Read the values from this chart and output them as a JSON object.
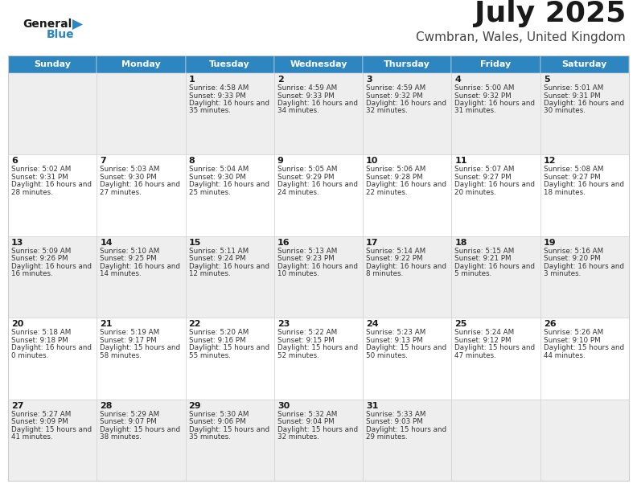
{
  "title": "July 2025",
  "subtitle": "Cwmbran, Wales, United Kingdom",
  "header_bg": "#2E86C1",
  "header_text_color": "#FFFFFF",
  "grid_color": "#CCCCCC",
  "title_color": "#1a1a1a",
  "subtitle_color": "#444444",
  "text_color": "#333333",
  "day_headers": [
    "Sunday",
    "Monday",
    "Tuesday",
    "Wednesday",
    "Thursday",
    "Friday",
    "Saturday"
  ],
  "row_bg": [
    "#EEEEEE",
    "#FFFFFF",
    "#EEEEEE",
    "#FFFFFF",
    "#EEEEEE"
  ],
  "weeks": [
    [
      {
        "day": "",
        "sunrise": "",
        "sunset": "",
        "daylight": ""
      },
      {
        "day": "",
        "sunrise": "",
        "sunset": "",
        "daylight": ""
      },
      {
        "day": "1",
        "sunrise": "4:58 AM",
        "sunset": "9:33 PM",
        "daylight": "16 hours and 35 minutes."
      },
      {
        "day": "2",
        "sunrise": "4:59 AM",
        "sunset": "9:33 PM",
        "daylight": "16 hours and 34 minutes."
      },
      {
        "day": "3",
        "sunrise": "4:59 AM",
        "sunset": "9:32 PM",
        "daylight": "16 hours and 32 minutes."
      },
      {
        "day": "4",
        "sunrise": "5:00 AM",
        "sunset": "9:32 PM",
        "daylight": "16 hours and 31 minutes."
      },
      {
        "day": "5",
        "sunrise": "5:01 AM",
        "sunset": "9:31 PM",
        "daylight": "16 hours and 30 minutes."
      }
    ],
    [
      {
        "day": "6",
        "sunrise": "5:02 AM",
        "sunset": "9:31 PM",
        "daylight": "16 hours and 28 minutes."
      },
      {
        "day": "7",
        "sunrise": "5:03 AM",
        "sunset": "9:30 PM",
        "daylight": "16 hours and 27 minutes."
      },
      {
        "day": "8",
        "sunrise": "5:04 AM",
        "sunset": "9:30 PM",
        "daylight": "16 hours and 25 minutes."
      },
      {
        "day": "9",
        "sunrise": "5:05 AM",
        "sunset": "9:29 PM",
        "daylight": "16 hours and 24 minutes."
      },
      {
        "day": "10",
        "sunrise": "5:06 AM",
        "sunset": "9:28 PM",
        "daylight": "16 hours and 22 minutes."
      },
      {
        "day": "11",
        "sunrise": "5:07 AM",
        "sunset": "9:27 PM",
        "daylight": "16 hours and 20 minutes."
      },
      {
        "day": "12",
        "sunrise": "5:08 AM",
        "sunset": "9:27 PM",
        "daylight": "16 hours and 18 minutes."
      }
    ],
    [
      {
        "day": "13",
        "sunrise": "5:09 AM",
        "sunset": "9:26 PM",
        "daylight": "16 hours and 16 minutes."
      },
      {
        "day": "14",
        "sunrise": "5:10 AM",
        "sunset": "9:25 PM",
        "daylight": "16 hours and 14 minutes."
      },
      {
        "day": "15",
        "sunrise": "5:11 AM",
        "sunset": "9:24 PM",
        "daylight": "16 hours and 12 minutes."
      },
      {
        "day": "16",
        "sunrise": "5:13 AM",
        "sunset": "9:23 PM",
        "daylight": "16 hours and 10 minutes."
      },
      {
        "day": "17",
        "sunrise": "5:14 AM",
        "sunset": "9:22 PM",
        "daylight": "16 hours and 8 minutes."
      },
      {
        "day": "18",
        "sunrise": "5:15 AM",
        "sunset": "9:21 PM",
        "daylight": "16 hours and 5 minutes."
      },
      {
        "day": "19",
        "sunrise": "5:16 AM",
        "sunset": "9:20 PM",
        "daylight": "16 hours and 3 minutes."
      }
    ],
    [
      {
        "day": "20",
        "sunrise": "5:18 AM",
        "sunset": "9:18 PM",
        "daylight": "16 hours and 0 minutes."
      },
      {
        "day": "21",
        "sunrise": "5:19 AM",
        "sunset": "9:17 PM",
        "daylight": "15 hours and 58 minutes."
      },
      {
        "day": "22",
        "sunrise": "5:20 AM",
        "sunset": "9:16 PM",
        "daylight": "15 hours and 55 minutes."
      },
      {
        "day": "23",
        "sunrise": "5:22 AM",
        "sunset": "9:15 PM",
        "daylight": "15 hours and 52 minutes."
      },
      {
        "day": "24",
        "sunrise": "5:23 AM",
        "sunset": "9:13 PM",
        "daylight": "15 hours and 50 minutes."
      },
      {
        "day": "25",
        "sunrise": "5:24 AM",
        "sunset": "9:12 PM",
        "daylight": "15 hours and 47 minutes."
      },
      {
        "day": "26",
        "sunrise": "5:26 AM",
        "sunset": "9:10 PM",
        "daylight": "15 hours and 44 minutes."
      }
    ],
    [
      {
        "day": "27",
        "sunrise": "5:27 AM",
        "sunset": "9:09 PM",
        "daylight": "15 hours and 41 minutes."
      },
      {
        "day": "28",
        "sunrise": "5:29 AM",
        "sunset": "9:07 PM",
        "daylight": "15 hours and 38 minutes."
      },
      {
        "day": "29",
        "sunrise": "5:30 AM",
        "sunset": "9:06 PM",
        "daylight": "15 hours and 35 minutes."
      },
      {
        "day": "30",
        "sunrise": "5:32 AM",
        "sunset": "9:04 PM",
        "daylight": "15 hours and 32 minutes."
      },
      {
        "day": "31",
        "sunrise": "5:33 AM",
        "sunset": "9:03 PM",
        "daylight": "15 hours and 29 minutes."
      },
      {
        "day": "",
        "sunrise": "",
        "sunset": "",
        "daylight": ""
      },
      {
        "day": "",
        "sunrise": "",
        "sunset": "",
        "daylight": ""
      }
    ]
  ]
}
